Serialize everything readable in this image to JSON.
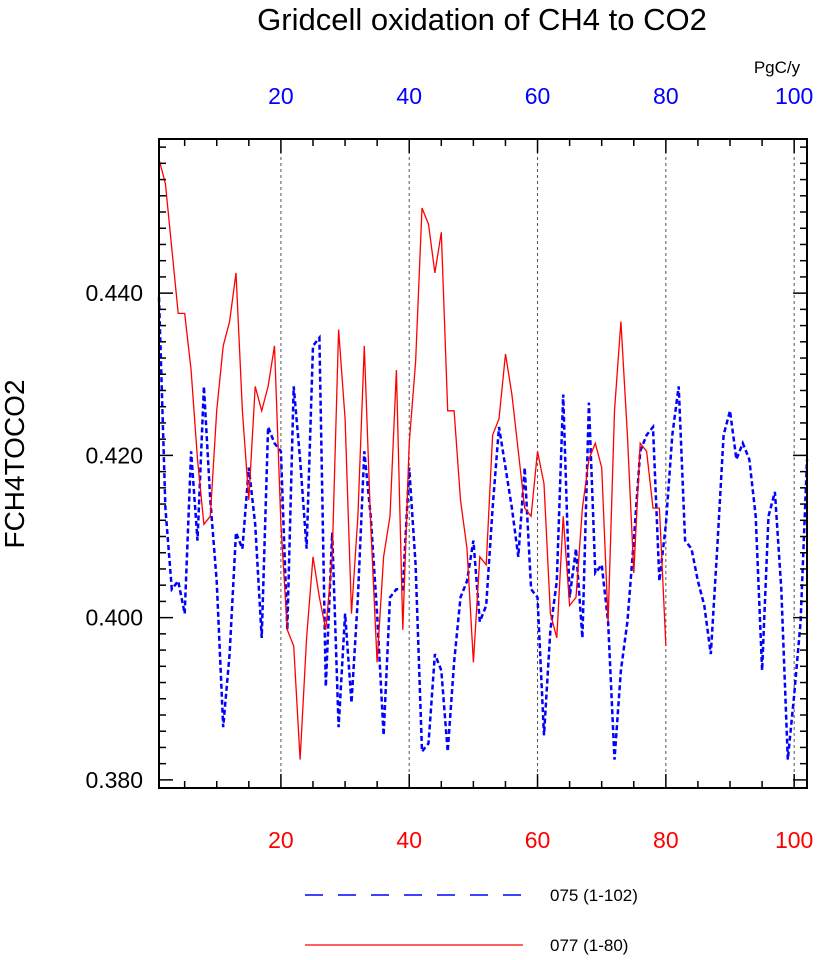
{
  "chart_data": {
    "type": "line",
    "title": "Gridcell oxidation of CH4 to CO2",
    "ylabel": "FCH4TOCO2",
    "top_unit": "PgC/y",
    "xlim": [
      1,
      102
    ],
    "ylim": [
      0.379,
      0.459
    ],
    "y_ticks": [
      "0.380",
      "0.400",
      "0.420",
      "0.440"
    ],
    "x_ticks_bottom": [
      "20",
      "40",
      "60",
      "80",
      "100"
    ],
    "x_ticks_top": [
      "20",
      "40",
      "60",
      "80",
      "100"
    ],
    "grid_x": [
      20,
      40,
      60,
      80,
      100
    ],
    "colors": {
      "bottom_axis": "#ff0000",
      "top_axis": "#0000ff"
    },
    "series": [
      {
        "name": "075 (1-102)",
        "color": "#0000ff",
        "dash": "dashed",
        "x": [
          1,
          2,
          3,
          4,
          5,
          6,
          7,
          8,
          9,
          10,
          11,
          12,
          13,
          14,
          15,
          16,
          17,
          18,
          19,
          20,
          21,
          22,
          23,
          24,
          25,
          26,
          27,
          28,
          29,
          30,
          31,
          32,
          33,
          34,
          35,
          36,
          37,
          38,
          39,
          40,
          41,
          42,
          43,
          44,
          45,
          46,
          47,
          48,
          49,
          50,
          51,
          52,
          53,
          54,
          55,
          56,
          57,
          58,
          59,
          60,
          61,
          62,
          63,
          64,
          65,
          66,
          67,
          68,
          69,
          70,
          71,
          72,
          73,
          74,
          75,
          76,
          77,
          78,
          79,
          80,
          81,
          82,
          83,
          84,
          85,
          86,
          87,
          88,
          89,
          90,
          91,
          92,
          93,
          94,
          95,
          96,
          97,
          98,
          99,
          100,
          101,
          102
        ],
        "values": [
          0.4395,
          0.4135,
          0.4035,
          0.4045,
          0.4005,
          0.4205,
          0.4095,
          0.4285,
          0.4145,
          0.4045,
          0.3865,
          0.3955,
          0.4105,
          0.4085,
          0.4185,
          0.4115,
          0.3975,
          0.4235,
          0.4215,
          0.4205,
          0.3985,
          0.4285,
          0.4195,
          0.4085,
          0.4335,
          0.4345,
          0.3915,
          0.4105,
          0.3865,
          0.4005,
          0.3895,
          0.4025,
          0.4205,
          0.4125,
          0.4005,
          0.3855,
          0.4025,
          0.4035,
          0.4035,
          0.4185,
          0.4065,
          0.3835,
          0.3845,
          0.3955,
          0.3935,
          0.3835,
          0.3945,
          0.4025,
          0.4045,
          0.4095,
          0.3995,
          0.4015,
          0.4135,
          0.4235,
          0.4185,
          0.4135,
          0.4075,
          0.4185,
          0.4035,
          0.4025,
          0.3855,
          0.3985,
          0.4045,
          0.4275,
          0.4025,
          0.4085,
          0.3975,
          0.4265,
          0.4055,
          0.4065,
          0.3995,
          0.3825,
          0.3935,
          0.3995,
          0.4095,
          0.4205,
          0.4225,
          0.4235,
          0.4045,
          0.4115,
          0.4225,
          0.4285,
          0.4095,
          0.4085,
          0.4045,
          0.4015,
          0.3955,
          0.4085,
          0.4225,
          0.4255,
          0.4195,
          0.4215,
          0.4195,
          0.4125,
          0.3935,
          0.4125,
          0.4155,
          0.4035,
          0.3825,
          0.3905,
          0.3995,
          0.4195
        ]
      },
      {
        "name": "077 (1-80)",
        "color": "#ff0000",
        "dash": "solid",
        "x": [
          1,
          2,
          3,
          4,
          5,
          6,
          7,
          8,
          9,
          10,
          11,
          12,
          13,
          14,
          15,
          16,
          17,
          18,
          19,
          20,
          21,
          22,
          23,
          24,
          25,
          26,
          27,
          28,
          29,
          30,
          31,
          32,
          33,
          34,
          35,
          36,
          37,
          38,
          39,
          40,
          41,
          42,
          43,
          44,
          45,
          46,
          47,
          48,
          49,
          50,
          51,
          52,
          53,
          54,
          55,
          56,
          57,
          58,
          59,
          60,
          61,
          62,
          63,
          64,
          65,
          66,
          67,
          68,
          69,
          70,
          71,
          72,
          73,
          74,
          75,
          76,
          77,
          78,
          79,
          80
        ],
        "values": [
          0.4565,
          0.4535,
          0.4455,
          0.4375,
          0.4375,
          0.4305,
          0.4195,
          0.4115,
          0.4125,
          0.4255,
          0.4335,
          0.4365,
          0.4425,
          0.4255,
          0.4145,
          0.4285,
          0.4255,
          0.4285,
          0.4335,
          0.4115,
          0.3985,
          0.3965,
          0.3825,
          0.3975,
          0.4075,
          0.4025,
          0.3985,
          0.4075,
          0.4355,
          0.4245,
          0.4005,
          0.4125,
          0.4335,
          0.4115,
          0.3945,
          0.4075,
          0.4125,
          0.4305,
          0.3985,
          0.4215,
          0.4315,
          0.4505,
          0.4485,
          0.4425,
          0.4475,
          0.4255,
          0.4255,
          0.4145,
          0.4085,
          0.3945,
          0.4075,
          0.4065,
          0.4225,
          0.4245,
          0.4325,
          0.4275,
          0.4205,
          0.4135,
          0.4125,
          0.4205,
          0.4165,
          0.4005,
          0.3975,
          0.4125,
          0.4015,
          0.4025,
          0.4135,
          0.4195,
          0.4215,
          0.4185,
          0.3995,
          0.4255,
          0.4365,
          0.4225,
          0.4055,
          0.4215,
          0.4205,
          0.4135,
          0.4135,
          0.3965
        ]
      }
    ]
  }
}
